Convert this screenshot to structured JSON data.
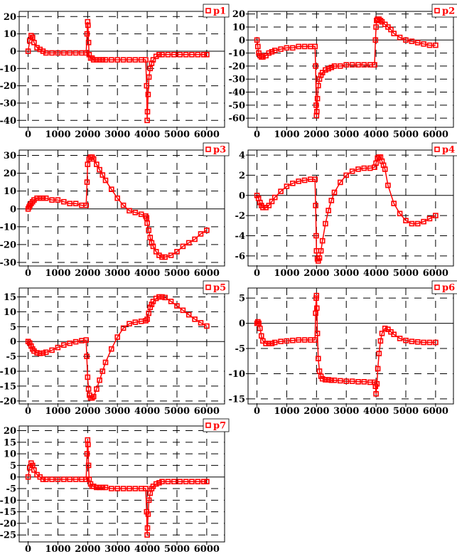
{
  "chart_data": [
    {
      "type": "line",
      "legend": "p1",
      "color": "#ff0000",
      "xlim": [
        -300,
        6600
      ],
      "ylim": [
        -44,
        23
      ],
      "xticks": [
        0,
        1000,
        2000,
        3000,
        4000,
        5000,
        6000
      ],
      "yticks": [
        20,
        10,
        0,
        -10,
        -20,
        -30,
        -40
      ],
      "grid": true,
      "legend_position": "top-right",
      "x": [
        0,
        50,
        100,
        150,
        200,
        300,
        400,
        500,
        600,
        800,
        1000,
        1200,
        1400,
        1600,
        1800,
        1950,
        1980,
        2000,
        2010,
        2030,
        2050,
        2100,
        2150,
        2200,
        2300,
        2400,
        2500,
        2600,
        2800,
        3000,
        3200,
        3400,
        3600,
        3800,
        3950,
        3980,
        4000,
        4010,
        4030,
        4060,
        4100,
        4150,
        4200,
        4300,
        4400,
        4500,
        4700,
        4900,
        5100,
        5300,
        5500,
        5700,
        5900,
        6000
      ],
      "y": [
        0,
        6,
        9,
        8,
        5,
        2,
        1,
        0,
        -1,
        -1,
        -1,
        -1,
        -1,
        -1,
        -1,
        -1,
        10,
        17,
        15,
        5,
        -2,
        -4,
        -4,
        -5,
        -5,
        -5,
        -5,
        -5,
        -5,
        -5,
        -5,
        -5,
        -5,
        -5,
        -5,
        -20,
        -40,
        -35,
        -25,
        -15,
        -10,
        -7,
        -5,
        -3,
        -2,
        -2,
        -2,
        -2,
        -2,
        -2,
        -2,
        -2,
        -2,
        -2
      ]
    },
    {
      "type": "line",
      "legend": "p2",
      "color": "#ff0000",
      "xlim": [
        -300,
        6600
      ],
      "ylim": [
        -67,
        22
      ],
      "xticks": [
        0,
        1000,
        2000,
        3000,
        4000,
        5000,
        6000
      ],
      "yticks": [
        20,
        10,
        0,
        -10,
        -20,
        -30,
        -40,
        -50,
        -60
      ],
      "grid": true,
      "legend_position": "top-right",
      "x": [
        0,
        30,
        60,
        100,
        150,
        200,
        300,
        400,
        500,
        600,
        800,
        1000,
        1200,
        1400,
        1600,
        1800,
        1950,
        1970,
        1990,
        2000,
        2010,
        2030,
        2060,
        2100,
        2150,
        2200,
        2300,
        2400,
        2500,
        2600,
        2800,
        3000,
        3200,
        3400,
        3600,
        3800,
        3950,
        3980,
        4000,
        4020,
        4050,
        4100,
        4150,
        4200,
        4300,
        4400,
        4500,
        4600,
        4800,
        5000,
        5200,
        5400,
        5600,
        5800,
        6000
      ],
      "y": [
        0,
        -5,
        -10,
        -12,
        -13,
        -13,
        -12,
        -10,
        -9,
        -8,
        -7,
        -6,
        -6,
        -5,
        -5,
        -5,
        -5,
        -20,
        -50,
        -58,
        -55,
        -45,
        -35,
        -30,
        -27,
        -25,
        -23,
        -22,
        -21,
        -20,
        -20,
        -19,
        -19,
        -19,
        -19,
        -19,
        -19,
        0,
        10,
        15,
        16,
        16,
        15,
        14,
        12,
        10,
        8,
        5,
        2,
        0,
        -1,
        -2,
        -3,
        -4,
        -4
      ]
    },
    {
      "type": "line",
      "legend": "p3",
      "color": "#ff0000",
      "xlim": [
        -300,
        6600
      ],
      "ylim": [
        -32,
        33
      ],
      "xticks": [
        0,
        1000,
        2000,
        3000,
        4000,
        5000,
        6000
      ],
      "yticks": [
        30,
        20,
        10,
        0,
        -10,
        -20,
        -30
      ],
      "grid": true,
      "legend_position": "top-right",
      "x": [
        0,
        30,
        60,
        100,
        150,
        200,
        300,
        400,
        500,
        600,
        800,
        1000,
        1200,
        1400,
        1600,
        1800,
        1950,
        1980,
        2000,
        2050,
        2100,
        2150,
        2200,
        2300,
        2400,
        2500,
        2600,
        2800,
        3000,
        3200,
        3400,
        3600,
        3800,
        3950,
        3980,
        4000,
        4050,
        4100,
        4150,
        4200,
        4300,
        4400,
        4500,
        4600,
        4800,
        5000,
        5200,
        5400,
        5600,
        5800,
        6000
      ],
      "y": [
        0,
        1,
        2,
        3,
        4,
        5,
        6,
        6,
        6,
        6,
        5,
        5,
        4,
        3,
        3,
        2,
        2,
        15,
        25,
        28,
        29,
        29,
        28,
        25,
        22,
        19,
        16,
        11,
        6,
        2,
        -1,
        -2,
        -3,
        -4,
        -5,
        -8,
        -12,
        -16,
        -19,
        -21,
        -24,
        -26,
        -27,
        -27,
        -26,
        -24,
        -21,
        -19,
        -17,
        -14,
        -12
      ]
    },
    {
      "type": "line",
      "legend": "p4",
      "color": "#ff0000",
      "xlim": [
        -300,
        6600
      ],
      "ylim": [
        -7,
        4.5
      ],
      "xticks": [
        0,
        1000,
        2000,
        3000,
        4000,
        5000,
        6000
      ],
      "yticks": [
        4,
        2,
        0,
        -2,
        -4,
        -6
      ],
      "grid": true,
      "legend_position": "top-right",
      "x": [
        0,
        50,
        100,
        150,
        200,
        300,
        400,
        500,
        600,
        800,
        1000,
        1200,
        1400,
        1600,
        1800,
        1950,
        1970,
        1990,
        2000,
        2030,
        2060,
        2100,
        2150,
        2200,
        2300,
        2400,
        2500,
        2600,
        2800,
        3000,
        3200,
        3400,
        3600,
        3800,
        3950,
        4000,
        4050,
        4100,
        4150,
        4200,
        4250,
        4300,
        4400,
        4600,
        4800,
        5000,
        5200,
        5400,
        5600,
        5800,
        6000
      ],
      "y": [
        0,
        -0.3,
        -0.7,
        -1.0,
        -1.2,
        -1.2,
        -1.0,
        -0.6,
        -0.2,
        0.4,
        0.9,
        1.2,
        1.4,
        1.5,
        1.6,
        1.6,
        -1.0,
        -4.0,
        -5.5,
        -6.3,
        -6.5,
        -6.2,
        -5.5,
        -4.5,
        -2.8,
        -1.5,
        -0.5,
        0.3,
        1.3,
        2.0,
        2.4,
        2.6,
        2.7,
        2.7,
        2.8,
        3.2,
        3.7,
        3.8,
        3.8,
        3.4,
        3.0,
        2.6,
        1.0,
        -0.8,
        -1.8,
        -2.5,
        -2.8,
        -2.8,
        -2.6,
        -2.3,
        -2.0
      ]
    },
    {
      "type": "line",
      "legend": "p5",
      "color": "#ff0000",
      "xlim": [
        -300,
        6600
      ],
      "ylim": [
        -21,
        18
      ],
      "xticks": [
        0,
        1000,
        2000,
        3000,
        4000,
        5000,
        6000
      ],
      "yticks": [
        15,
        10,
        5,
        0,
        -5,
        -10,
        -15,
        -20
      ],
      "grid": true,
      "legend_position": "top-right",
      "x": [
        0,
        50,
        100,
        150,
        200,
        300,
        400,
        500,
        600,
        800,
        1000,
        1200,
        1400,
        1600,
        1800,
        1950,
        1970,
        2000,
        2030,
        2060,
        2100,
        2150,
        2200,
        2300,
        2400,
        2500,
        2600,
        2800,
        3000,
        3200,
        3400,
        3600,
        3800,
        3950,
        4000,
        4050,
        4100,
        4150,
        4200,
        4300,
        4400,
        4500,
        4600,
        4800,
        5000,
        5200,
        5400,
        5600,
        5800,
        6000
      ],
      "y": [
        0,
        -0.5,
        -1.5,
        -2.5,
        -3.2,
        -3.8,
        -4.0,
        -3.9,
        -3.6,
        -2.9,
        -2.0,
        -1.2,
        -0.6,
        -0.1,
        0.3,
        0.5,
        -5,
        -12,
        -16,
        -18,
        -19,
        -19,
        -18.5,
        -16,
        -13,
        -10,
        -7,
        -2.5,
        1.5,
        4.5,
        6.0,
        6.5,
        6.8,
        7.0,
        7.5,
        9.5,
        11.5,
        12.5,
        13.5,
        14.5,
        15.0,
        15.0,
        14.8,
        13.5,
        12.0,
        10.5,
        9.0,
        7.5,
        6.3,
        5.2
      ]
    },
    {
      "type": "line",
      "legend": "p6",
      "color": "#ff0000",
      "xlim": [
        -300,
        6600
      ],
      "ylim": [
        -16,
        7
      ],
      "xticks": [
        0,
        1000,
        2000,
        3000,
        4000,
        5000,
        6000
      ],
      "yticks": [
        5,
        0,
        -5,
        -10,
        -15
      ],
      "grid": true,
      "legend_position": "top-right",
      "x": [
        0,
        30,
        60,
        100,
        150,
        200,
        300,
        400,
        500,
        600,
        800,
        1000,
        1200,
        1400,
        1600,
        1800,
        1950,
        1970,
        1990,
        2000,
        2010,
        2030,
        2060,
        2100,
        2150,
        2200,
        2300,
        2400,
        2500,
        2600,
        2800,
        3000,
        3200,
        3400,
        3600,
        3800,
        3950,
        3980,
        4000,
        4030,
        4060,
        4100,
        4150,
        4200,
        4300,
        4400,
        4500,
        4600,
        4800,
        5000,
        5200,
        5400,
        5600,
        5800,
        6000
      ],
      "y": [
        0,
        0.3,
        0,
        -1.0,
        -2.5,
        -3.5,
        -4.0,
        -4.0,
        -4.0,
        -3.8,
        -3.6,
        -3.5,
        -3.4,
        -3.3,
        -3.3,
        -3.3,
        -3.3,
        2,
        5,
        5.5,
        3,
        -2,
        -7,
        -9.5,
        -10.5,
        -11,
        -11.2,
        -11.2,
        -11.3,
        -11.3,
        -11.4,
        -11.5,
        -11.5,
        -11.6,
        -11.6,
        -11.7,
        -11.7,
        -12.5,
        -14,
        -12,
        -9,
        -6,
        -3.5,
        -2.0,
        -1.0,
        -1.2,
        -1.7,
        -2.2,
        -3.0,
        -3.4,
        -3.6,
        -3.7,
        -3.8,
        -3.8,
        -3.8
      ]
    },
    {
      "type": "line",
      "legend": "p7",
      "color": "#ff0000",
      "xlim": [
        -300,
        6600
      ],
      "ylim": [
        -28,
        22
      ],
      "xticks": [
        0,
        1000,
        2000,
        3000,
        4000,
        5000,
        6000
      ],
      "yticks": [
        20,
        15,
        10,
        5,
        0,
        -5,
        -10,
        -15,
        -20,
        -25
      ],
      "grid": true,
      "legend_position": "top-right",
      "x": [
        0,
        50,
        100,
        150,
        200,
        300,
        400,
        500,
        600,
        800,
        1000,
        1200,
        1400,
        1600,
        1800,
        1950,
        1980,
        2000,
        2010,
        2030,
        2050,
        2100,
        2150,
        2200,
        2300,
        2400,
        2500,
        2600,
        2800,
        3000,
        3200,
        3400,
        3600,
        3800,
        3950,
        3980,
        4000,
        4010,
        4030,
        4060,
        4100,
        4150,
        4200,
        4300,
        4400,
        4500,
        4700,
        4900,
        5100,
        5300,
        5500,
        5700,
        5900,
        6000
      ],
      "y": [
        0,
        4,
        6,
        5,
        3,
        1,
        0,
        -1,
        -1,
        -1,
        -1,
        -1,
        -1,
        -1,
        -1,
        -1,
        10,
        16,
        14,
        5,
        -1,
        -3,
        -4,
        -4,
        -4.5,
        -4.5,
        -4.5,
        -4.5,
        -5,
        -5,
        -5,
        -5,
        -5,
        -5,
        -5,
        -15,
        -25,
        -22,
        -16,
        -10,
        -7,
        -5,
        -4,
        -3,
        -2.5,
        -2,
        -2,
        -2,
        -2,
        -2,
        -2,
        -2,
        -2,
        -2
      ]
    }
  ]
}
